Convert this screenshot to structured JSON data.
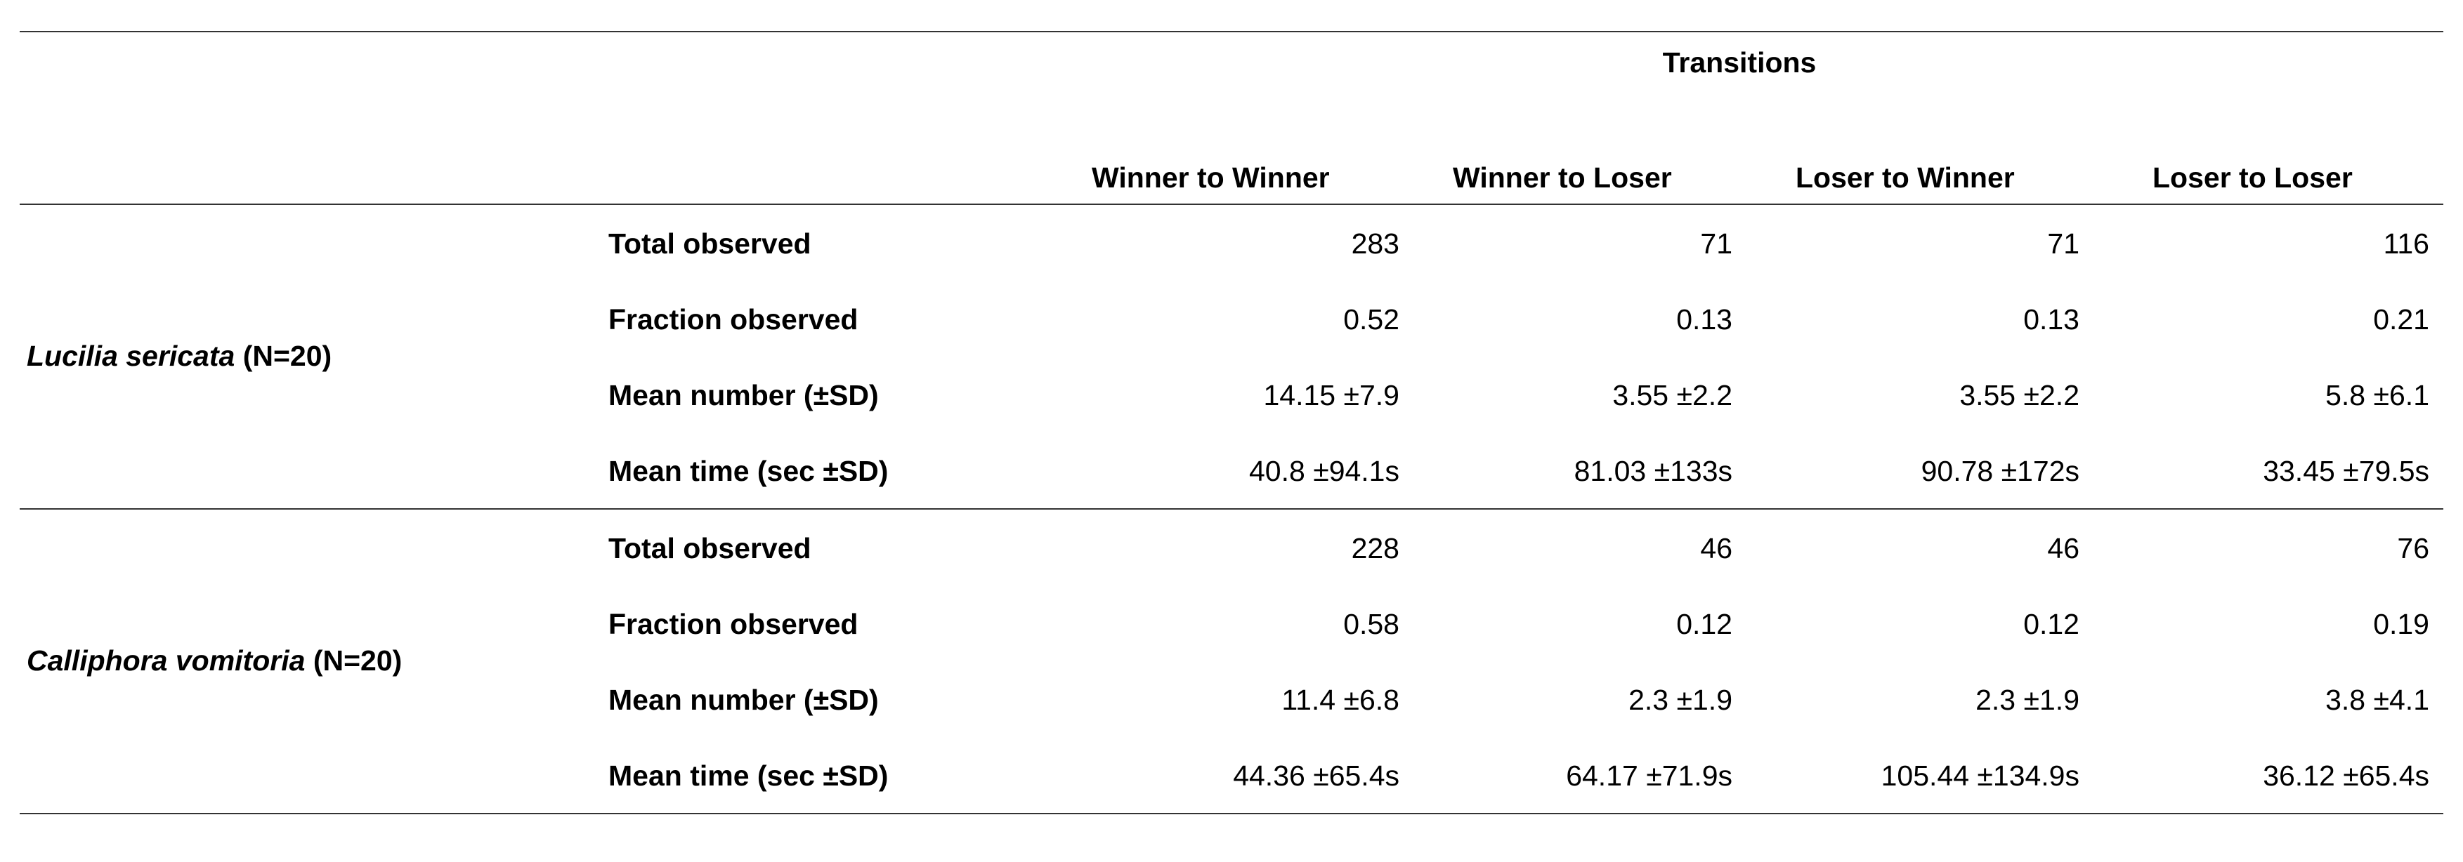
{
  "table": {
    "spanning_header": "Transitions",
    "columns": [
      "Winner to Winner",
      "Winner to Loser",
      "Loser to Winner",
      "Loser to Loser"
    ],
    "groups": [
      {
        "species": "Lucilia sericata",
        "n_label": "(N=20)",
        "rows": [
          {
            "label": "Total observed",
            "values": [
              "283",
              "71",
              "71",
              "116"
            ]
          },
          {
            "label": "Fraction observed",
            "values": [
              "0.52",
              "0.13",
              "0.13",
              "0.21"
            ]
          },
          {
            "label": "Mean number (±SD)",
            "values": [
              "14.15 ±7.9",
              "3.55 ±2.2",
              "3.55 ±2.2",
              "5.8 ±6.1"
            ]
          },
          {
            "label": "Mean time (sec ±SD)",
            "values": [
              "40.8 ±94.1s",
              "81.03 ±133s",
              "90.78 ±172s",
              "33.45 ±79.5s"
            ]
          }
        ]
      },
      {
        "species": "Calliphora vomitoria",
        "n_label": "(N=20)",
        "rows": [
          {
            "label": "Total observed",
            "values": [
              "228",
              "46",
              "46",
              "76"
            ]
          },
          {
            "label": "Fraction observed",
            "values": [
              "0.58",
              "0.12",
              "0.12",
              "0.19"
            ]
          },
          {
            "label": "Mean number (±SD)",
            "values": [
              "11.4 ±6.8",
              "2.3 ±1.9",
              "2.3 ±1.9",
              "3.8 ±4.1"
            ]
          },
          {
            "label": "Mean time (sec ±SD)",
            "values": [
              "44.36 ±65.4s",
              "64.17 ±71.9s",
              "105.44 ±134.9s",
              "36.12 ±65.4s"
            ]
          }
        ]
      }
    ]
  }
}
